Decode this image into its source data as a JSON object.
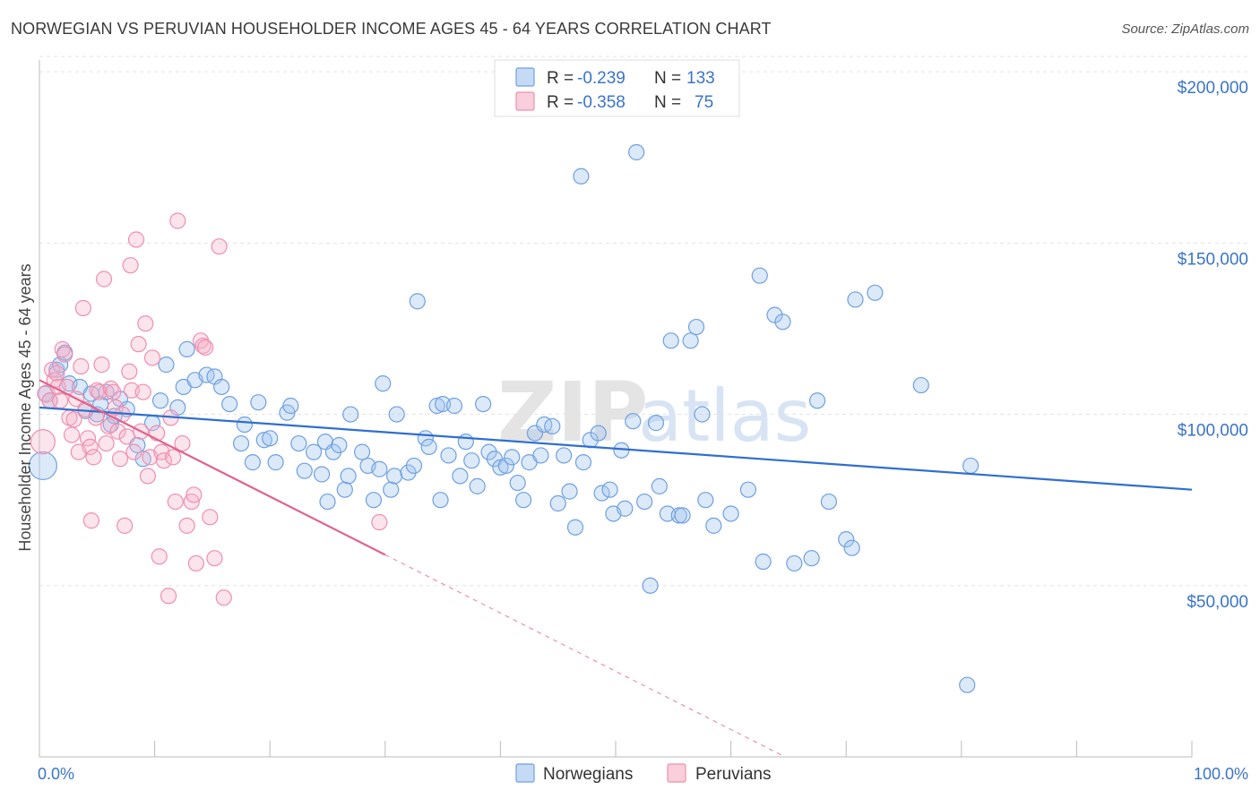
{
  "header": {
    "title": "NORWEGIAN VS PERUVIAN HOUSEHOLDER INCOME AGES 45 - 64 YEARS CORRELATION CHART",
    "source": "Source: ZipAtlas.com"
  },
  "watermark": {
    "zip": "ZIP",
    "atlas": "atlas"
  },
  "legend": {
    "rows": [
      {
        "r_label": "R =",
        "r_value": "-0.239",
        "n_label": "N =",
        "n_value": "133",
        "color": "#6fa0e0"
      },
      {
        "r_label": "R =",
        "r_value": "-0.358",
        "n_label": "N =",
        "n_value": "75",
        "color": "#ef8fae"
      }
    ]
  },
  "bottom_legend": [
    {
      "label": "Norwegians",
      "color": "#6fa0e0"
    },
    {
      "label": "Peruvians",
      "color": "#ef8fae"
    }
  ],
  "chart_data": {
    "type": "scatter",
    "title": "NORWEGIAN VS PERUVIAN HOUSEHOLDER INCOME AGES 45 - 64 YEARS CORRELATION CHART",
    "xlabel": "",
    "ylabel": "Householder Income Ages 45 - 64 years",
    "xlim": [
      0,
      100
    ],
    "ylim": [
      0,
      205000
    ],
    "x_tick_labels": [
      "0.0%",
      "100.0%"
    ],
    "y_ticks": [
      50000,
      100000,
      150000,
      200000
    ],
    "y_tick_labels": [
      "$50,000",
      "$100,000",
      "$150,000",
      "$200,000"
    ],
    "grid": true,
    "legend_placement": "top-center",
    "series": [
      {
        "name": "Norwegians",
        "color": "#6fa0e0",
        "trend": {
          "x": [
            0,
            100
          ],
          "y": [
            102000,
            78000
          ]
        },
        "points": [
          [
            0.3,
            85000,
            14
          ],
          [
            0.5,
            106000,
            7
          ],
          [
            0.9,
            104000,
            7
          ],
          [
            1.5,
            113000,
            7
          ],
          [
            1.8,
            114500,
            7
          ],
          [
            2.2,
            118000,
            7
          ],
          [
            2.6,
            109000,
            7
          ],
          [
            3.5,
            108000,
            7
          ],
          [
            4.0,
            101000,
            7
          ],
          [
            4.5,
            106000,
            7
          ],
          [
            5.0,
            100000,
            7
          ],
          [
            5.3,
            103000,
            7
          ],
          [
            5.8,
            106500,
            7
          ],
          [
            6.2,
            97000,
            7
          ],
          [
            6.5,
            99500,
            7
          ],
          [
            7.0,
            104500,
            7
          ],
          [
            7.6,
            101500,
            7
          ],
          [
            8.5,
            91000,
            7
          ],
          [
            9.0,
            87000,
            7
          ],
          [
            9.8,
            97500,
            7
          ],
          [
            10.5,
            104000,
            7
          ],
          [
            11.0,
            114500,
            7
          ],
          [
            12.0,
            102000,
            7
          ],
          [
            12.5,
            108000,
            7
          ],
          [
            12.8,
            119000,
            7
          ],
          [
            13.5,
            110000,
            7
          ],
          [
            14.5,
            111500,
            7
          ],
          [
            15.2,
            111000,
            7
          ],
          [
            15.8,
            108000,
            7
          ],
          [
            16.5,
            103000,
            7
          ],
          [
            17.5,
            91500,
            7
          ],
          [
            17.8,
            97000,
            7
          ],
          [
            18.5,
            86000,
            7
          ],
          [
            19.0,
            103500,
            7
          ],
          [
            19.5,
            92500,
            7
          ],
          [
            20.0,
            93000,
            7
          ],
          [
            20.5,
            86000,
            7
          ],
          [
            21.5,
            100500,
            7
          ],
          [
            21.8,
            102500,
            7
          ],
          [
            22.5,
            91500,
            7
          ],
          [
            23.0,
            83500,
            7
          ],
          [
            23.8,
            89000,
            7
          ],
          [
            24.5,
            82500,
            7
          ],
          [
            24.8,
            92000,
            7
          ],
          [
            25.0,
            74500,
            7
          ],
          [
            25.5,
            89000,
            7
          ],
          [
            26.0,
            91000,
            7
          ],
          [
            26.5,
            78000,
            7
          ],
          [
            26.8,
            82000,
            7
          ],
          [
            27.0,
            100000,
            7
          ],
          [
            28.0,
            89000,
            7
          ],
          [
            28.5,
            85000,
            7
          ],
          [
            29.0,
            75000,
            7
          ],
          [
            29.5,
            84000,
            7
          ],
          [
            29.8,
            109000,
            7
          ],
          [
            30.5,
            78000,
            7
          ],
          [
            30.8,
            82000,
            7
          ],
          [
            31.0,
            100000,
            7
          ],
          [
            32.0,
            83000,
            7
          ],
          [
            32.5,
            85000,
            7
          ],
          [
            32.8,
            133000,
            7
          ],
          [
            33.5,
            93000,
            7
          ],
          [
            33.8,
            90500,
            7
          ],
          [
            34.5,
            102500,
            7
          ],
          [
            34.8,
            75000,
            7
          ],
          [
            35.0,
            103000,
            7
          ],
          [
            35.5,
            88000,
            7
          ],
          [
            36.0,
            102500,
            7
          ],
          [
            36.5,
            82000,
            7
          ],
          [
            37.0,
            92000,
            7
          ],
          [
            37.5,
            86500,
            7
          ],
          [
            38.0,
            79000,
            7
          ],
          [
            38.5,
            103000,
            7
          ],
          [
            39.0,
            89000,
            7
          ],
          [
            39.5,
            87000,
            7
          ],
          [
            40.0,
            84500,
            7
          ],
          [
            40.5,
            85000,
            7
          ],
          [
            41.0,
            87500,
            7
          ],
          [
            41.5,
            80000,
            7
          ],
          [
            42.0,
            75000,
            7
          ],
          [
            42.5,
            86000,
            7
          ],
          [
            43.0,
            94500,
            7
          ],
          [
            43.5,
            88000,
            7
          ],
          [
            43.8,
            97000,
            7
          ],
          [
            44.5,
            96500,
            7
          ],
          [
            45.0,
            74000,
            7
          ],
          [
            45.5,
            88000,
            7
          ],
          [
            46.0,
            77500,
            7
          ],
          [
            46.5,
            67000,
            7
          ],
          [
            47.0,
            169500,
            7
          ],
          [
            47.2,
            86000,
            7
          ],
          [
            47.8,
            92500,
            7
          ],
          [
            48.5,
            94500,
            7
          ],
          [
            48.8,
            77000,
            7
          ],
          [
            49.5,
            78000,
            7
          ],
          [
            49.8,
            71000,
            7
          ],
          [
            50.5,
            89500,
            7
          ],
          [
            50.8,
            72500,
            7
          ],
          [
            51.5,
            98000,
            7
          ],
          [
            51.8,
            176500,
            7
          ],
          [
            52.5,
            74500,
            7
          ],
          [
            53.0,
            50000,
            7
          ],
          [
            53.5,
            97500,
            7
          ],
          [
            53.8,
            79000,
            7
          ],
          [
            54.5,
            71000,
            7
          ],
          [
            54.8,
            121500,
            7
          ],
          [
            55.5,
            70500,
            7
          ],
          [
            55.8,
            70500,
            7
          ],
          [
            56.5,
            121500,
            7
          ],
          [
            57.0,
            125500,
            7
          ],
          [
            57.5,
            100000,
            7
          ],
          [
            57.8,
            75000,
            7
          ],
          [
            58.5,
            67500,
            7
          ],
          [
            60.0,
            71000,
            7
          ],
          [
            61.5,
            78000,
            7
          ],
          [
            62.5,
            140500,
            7
          ],
          [
            62.8,
            57000,
            7
          ],
          [
            63.8,
            129000,
            7
          ],
          [
            64.5,
            127000,
            7
          ],
          [
            65.5,
            56500,
            7
          ],
          [
            67.0,
            58000,
            7
          ],
          [
            67.5,
            104000,
            7
          ],
          [
            68.5,
            74500,
            7
          ],
          [
            70.0,
            63500,
            7
          ],
          [
            70.5,
            61000,
            7
          ],
          [
            70.8,
            133500,
            7
          ],
          [
            72.5,
            135500,
            7
          ],
          [
            76.5,
            108500,
            7
          ],
          [
            80.5,
            21000,
            7
          ],
          [
            80.8,
            85000,
            7
          ]
        ]
      },
      {
        "name": "Peruvians",
        "color": "#ef8fae",
        "trend": {
          "x": [
            0,
            30
          ],
          "y": [
            110000,
            59000
          ]
        },
        "points": [
          [
            0.3,
            92000,
            12
          ],
          [
            0.6,
            106000,
            8
          ],
          [
            0.9,
            104000,
            7
          ],
          [
            1.1,
            113000,
            7
          ],
          [
            1.3,
            110000,
            7
          ],
          [
            1.5,
            112000,
            7
          ],
          [
            1.6,
            108000,
            7
          ],
          [
            1.8,
            104000,
            7
          ],
          [
            2.0,
            119000,
            7
          ],
          [
            2.2,
            117500,
            7
          ],
          [
            2.4,
            108000,
            7
          ],
          [
            2.6,
            99000,
            7
          ],
          [
            2.8,
            94000,
            7
          ],
          [
            3.0,
            98500,
            7
          ],
          [
            3.2,
            104500,
            7
          ],
          [
            3.4,
            89000,
            7
          ],
          [
            3.6,
            114000,
            7
          ],
          [
            3.8,
            131000,
            7
          ],
          [
            4.0,
            101500,
            7
          ],
          [
            4.2,
            93000,
            7
          ],
          [
            4.4,
            90500,
            7
          ],
          [
            4.5,
            69000,
            7
          ],
          [
            4.7,
            87500,
            7
          ],
          [
            4.9,
            99000,
            7
          ],
          [
            5.0,
            107000,
            7
          ],
          [
            5.2,
            106500,
            7
          ],
          [
            5.4,
            114500,
            7
          ],
          [
            5.6,
            139500,
            7
          ],
          [
            5.8,
            91500,
            7
          ],
          [
            6.0,
            96500,
            7
          ],
          [
            6.2,
            107500,
            7
          ],
          [
            6.4,
            106500,
            7
          ],
          [
            6.6,
            102000,
            7
          ],
          [
            6.8,
            95000,
            7
          ],
          [
            7.0,
            87000,
            7
          ],
          [
            7.2,
            100000,
            7
          ],
          [
            7.4,
            67500,
            7
          ],
          [
            7.6,
            93500,
            7
          ],
          [
            7.8,
            112500,
            7
          ],
          [
            7.9,
            143500,
            7
          ],
          [
            8.0,
            107000,
            7
          ],
          [
            8.2,
            89000,
            7
          ],
          [
            8.4,
            151000,
            7
          ],
          [
            8.6,
            120500,
            7
          ],
          [
            8.8,
            95000,
            7
          ],
          [
            9.0,
            106500,
            7
          ],
          [
            9.2,
            126500,
            7
          ],
          [
            9.4,
            82000,
            7
          ],
          [
            9.6,
            87500,
            7
          ],
          [
            9.8,
            116500,
            7
          ],
          [
            10.2,
            94500,
            7
          ],
          [
            10.4,
            58500,
            7
          ],
          [
            10.6,
            89000,
            7
          ],
          [
            10.8,
            86500,
            7
          ],
          [
            11.2,
            47000,
            7
          ],
          [
            11.4,
            99000,
            7
          ],
          [
            11.6,
            87500,
            7
          ],
          [
            11.8,
            74500,
            7
          ],
          [
            12.0,
            156500,
            7
          ],
          [
            12.4,
            91500,
            7
          ],
          [
            12.8,
            67500,
            7
          ],
          [
            13.2,
            74500,
            7
          ],
          [
            13.4,
            76500,
            7
          ],
          [
            13.6,
            56500,
            7
          ],
          [
            14.0,
            121500,
            7
          ],
          [
            14.2,
            120000,
            7
          ],
          [
            14.4,
            119500,
            7
          ],
          [
            14.8,
            70000,
            7
          ],
          [
            15.2,
            58000,
            7
          ],
          [
            15.6,
            149000,
            7
          ],
          [
            16.0,
            46500,
            7
          ],
          [
            29.5,
            68500,
            7
          ]
        ]
      }
    ]
  }
}
